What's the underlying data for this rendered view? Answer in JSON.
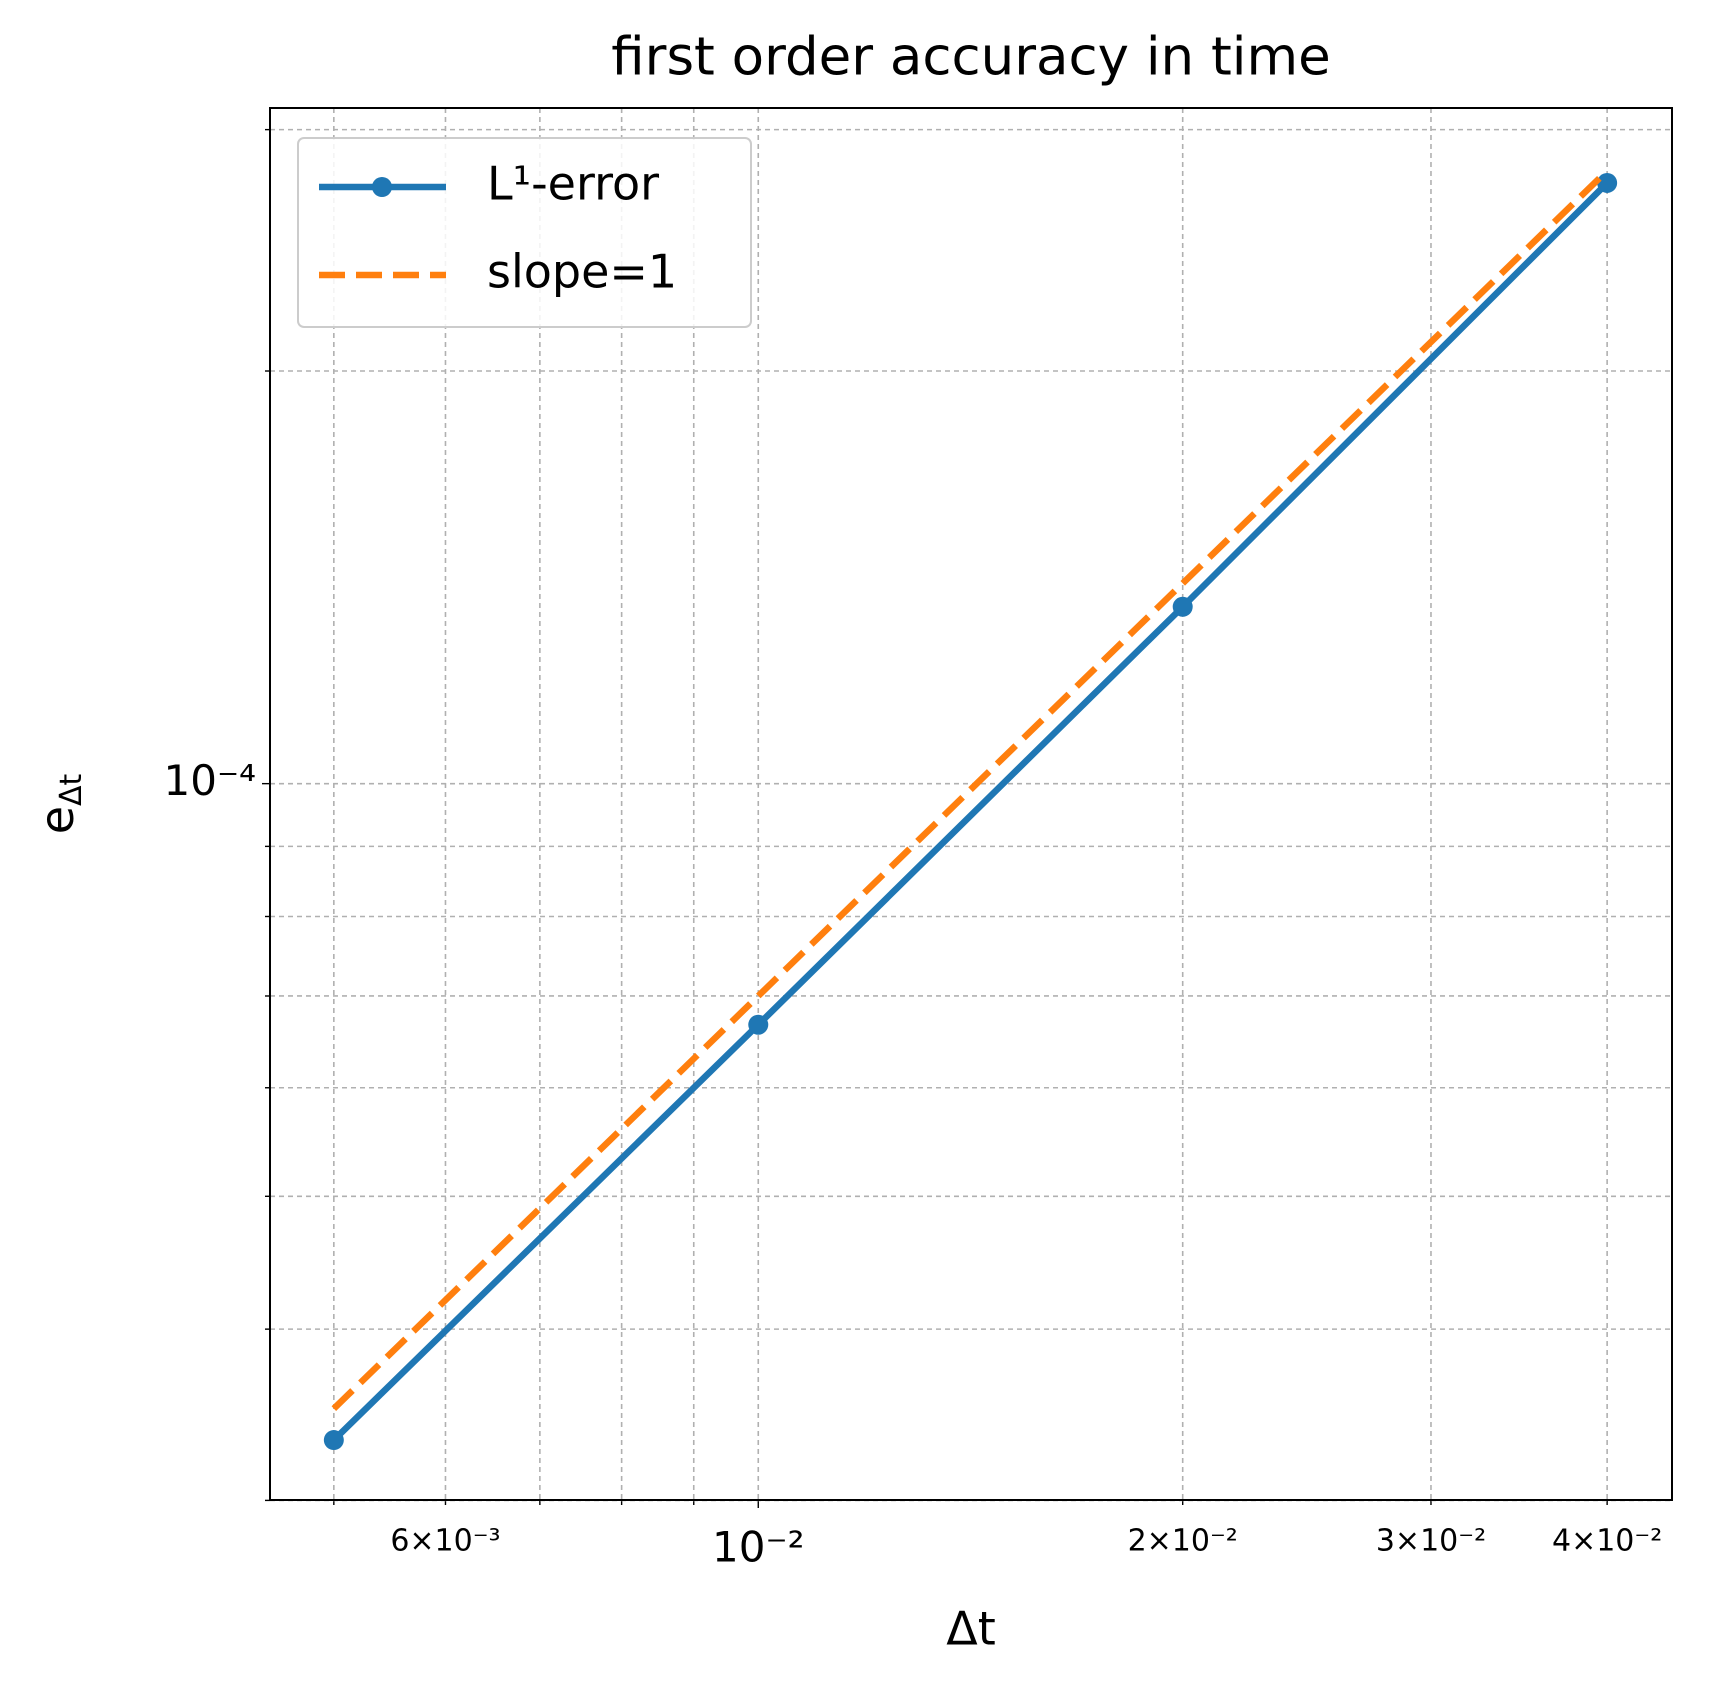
{
  "chart_data": {
    "type": "line",
    "title": "first order accuracy in time",
    "xlabel": "Δt",
    "ylabel": {
      "base": "e",
      "subscript": "Δt"
    },
    "x": [
      0.005,
      0.01,
      0.02,
      0.04
    ],
    "series": [
      {
        "name": "L¹-error",
        "color": "#1f77b4",
        "style": "solid",
        "marker": true,
        "values": [
          3.32e-05,
          6.67e-05,
          0.0001346,
          0.0002743
        ]
      },
      {
        "name": "slope=1",
        "color": "#ff7f0e",
        "style": "dashed",
        "marker": false,
        "values": [
          3.5e-05,
          7e-05,
          0.00014,
          0.00028
        ]
      }
    ],
    "xscale": "log",
    "yscale": "log",
    "xlim": [
      0.004505,
      0.04447
    ],
    "ylim": [
      3.002e-05,
      0.0003111
    ],
    "xticks": [
      {
        "value": 0.006,
        "label": "6×10⁻³"
      },
      {
        "value": 0.01,
        "label": "10⁻²"
      },
      {
        "value": 0.02,
        "label": "2×10⁻²"
      },
      {
        "value": 0.03,
        "label": "3×10⁻²"
      },
      {
        "value": 0.04,
        "label": "4×10⁻²"
      }
    ],
    "x_minor_ticks": [
      0.005,
      0.007,
      0.008,
      0.009
    ],
    "yticks": [
      {
        "value": 0.0001,
        "label": "10⁻⁴"
      }
    ],
    "y_minor_ticks": [
      3e-05,
      4e-05,
      5e-05,
      6e-05,
      7e-05,
      8e-05,
      9e-05,
      0.0002,
      0.0003
    ],
    "grid": true,
    "legend": "upper left"
  }
}
